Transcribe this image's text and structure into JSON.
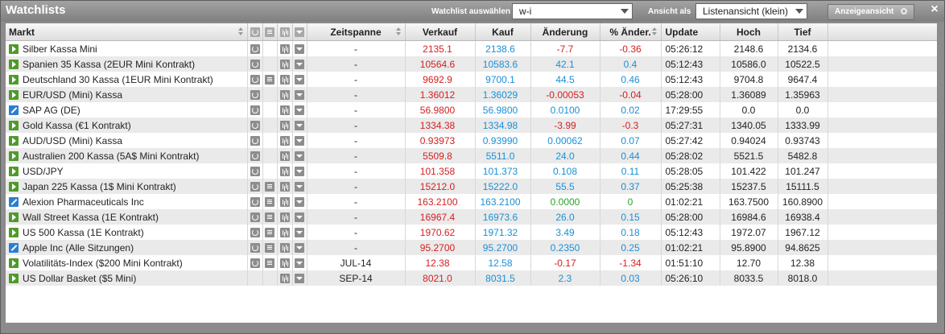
{
  "window": {
    "title": "Watchlists",
    "watchlist_label": "Watchlist auswählen",
    "watchlist_value": "w-i",
    "view_label": "Ansicht als",
    "view_value": "Listenansicht (klein)",
    "display_button": "Anzeigeansicht",
    "close_icon": "×"
  },
  "columns": {
    "name": "Markt",
    "period": "Zeitspanne",
    "sell": "Verkauf",
    "buy": "Kauf",
    "change": "Änderung",
    "pct": "% Änder.",
    "update": "Update",
    "high": "Hoch",
    "low": "Tief"
  },
  "rows": [
    {
      "name": "Silber Kassa Mini",
      "type": "play",
      "doc": false,
      "period": "-",
      "sell": "2135.1",
      "buy": "2138.6",
      "change": "-7.7",
      "pct": "-0.36",
      "dir": "down",
      "update": "05:26:12",
      "high": "2148.6",
      "low": "2134.6"
    },
    {
      "name": "Spanien 35 Kassa (2EUR Mini Kontrakt)",
      "type": "play",
      "doc": false,
      "period": "-",
      "sell": "10564.6",
      "buy": "10583.6",
      "change": "42.1",
      "pct": "0.4",
      "dir": "up",
      "update": "05:12:43",
      "high": "10586.0",
      "low": "10522.5"
    },
    {
      "name": "Deutschland 30 Kassa (1EUR Mini Kontrakt)",
      "type": "play",
      "doc": true,
      "period": "-",
      "sell": "9692.9",
      "buy": "9700.1",
      "change": "44.5",
      "pct": "0.46",
      "dir": "up",
      "update": "05:12:43",
      "high": "9704.8",
      "low": "9647.4"
    },
    {
      "name": "EUR/USD (Mini) Kassa",
      "type": "play",
      "doc": false,
      "period": "-",
      "sell": "1.36012",
      "buy": "1.36029",
      "change": "-0.00053",
      "pct": "-0.04",
      "dir": "down",
      "update": "05:28:00",
      "high": "1.36089",
      "low": "1.35963"
    },
    {
      "name": "SAP AG (DE)",
      "type": "pen",
      "doc": false,
      "period": "-",
      "sell": "56.9800",
      "buy": "56.9800",
      "change": "0.0100",
      "pct": "0.02",
      "dir": "up",
      "update": "17:29:55",
      "high": "0.0",
      "low": "0.0"
    },
    {
      "name": "Gold Kassa (€1 Kontrakt)",
      "type": "play",
      "doc": false,
      "period": "-",
      "sell": "1334.38",
      "buy": "1334.98",
      "change": "-3.99",
      "pct": "-0.3",
      "dir": "down",
      "update": "05:27:31",
      "high": "1340.05",
      "low": "1333.99"
    },
    {
      "name": "AUD/USD (Mini) Kassa",
      "type": "play",
      "doc": false,
      "period": "-",
      "sell": "0.93973",
      "buy": "0.93990",
      "change": "0.00062",
      "pct": "0.07",
      "dir": "up",
      "update": "05:27:42",
      "high": "0.94024",
      "low": "0.93743"
    },
    {
      "name": "Australien 200 Kassa (5A$ Mini Kontrakt)",
      "type": "play",
      "doc": false,
      "period": "-",
      "sell": "5509.8",
      "buy": "5511.0",
      "change": "24.0",
      "pct": "0.44",
      "dir": "up",
      "update": "05:28:02",
      "high": "5521.5",
      "low": "5482.8"
    },
    {
      "name": "USD/JPY",
      "type": "play",
      "doc": false,
      "period": "-",
      "sell": "101.358",
      "buy": "101.373",
      "change": "0.108",
      "pct": "0.11",
      "dir": "up",
      "update": "05:28:05",
      "high": "101.422",
      "low": "101.247"
    },
    {
      "name": "Japan 225 Kassa (1$ Mini Kontrakt)",
      "type": "play",
      "doc": true,
      "period": "-",
      "sell": "15212.0",
      "buy": "15222.0",
      "change": "55.5",
      "pct": "0.37",
      "dir": "up",
      "update": "05:25:38",
      "high": "15237.5",
      "low": "15111.5"
    },
    {
      "name": "Alexion Pharmaceuticals Inc",
      "type": "pen",
      "doc": true,
      "period": "-",
      "sell": "163.2100",
      "buy": "163.2100",
      "change": "0.0000",
      "pct": "0",
      "dir": "flat",
      "update": "01:02:21",
      "high": "163.7500",
      "low": "160.8900"
    },
    {
      "name": "Wall Street Kassa (1E Kontrakt)",
      "type": "play",
      "doc": true,
      "period": "-",
      "sell": "16967.4",
      "buy": "16973.6",
      "change": "26.0",
      "pct": "0.15",
      "dir": "up",
      "update": "05:28:00",
      "high": "16984.6",
      "low": "16938.4"
    },
    {
      "name": "US 500 Kassa (1E Kontrakt)",
      "type": "play",
      "doc": true,
      "period": "-",
      "sell": "1970.62",
      "buy": "1971.32",
      "change": "3.49",
      "pct": "0.18",
      "dir": "up",
      "update": "05:12:43",
      "high": "1972.07",
      "low": "1967.12"
    },
    {
      "name": "Apple Inc (Alle Sitzungen)",
      "type": "pen",
      "doc": true,
      "period": "-",
      "sell": "95.2700",
      "buy": "95.2700",
      "change": "0.2350",
      "pct": "0.25",
      "dir": "up",
      "update": "01:02:21",
      "high": "95.8900",
      "low": "94.8625"
    },
    {
      "name": "Volatilitäts-Index ($200 Mini Kontrakt)",
      "type": "play",
      "doc": true,
      "period": "JUL-14",
      "sell": "12.38",
      "buy": "12.58",
      "change": "-0.17",
      "pct": "-1.34",
      "dir": "down",
      "update": "01:51:10",
      "high": "12.70",
      "low": "12.38"
    },
    {
      "name": "US Dollar Basket ($5 Mini)",
      "type": "play",
      "doc": false,
      "noRefresh": true,
      "period": "SEP-14",
      "sell": "8021.0",
      "buy": "8031.5",
      "change": "2.3",
      "pct": "0.03",
      "dir": "up",
      "update": "05:26:10",
      "high": "8033.5",
      "low": "8018.0"
    }
  ]
}
